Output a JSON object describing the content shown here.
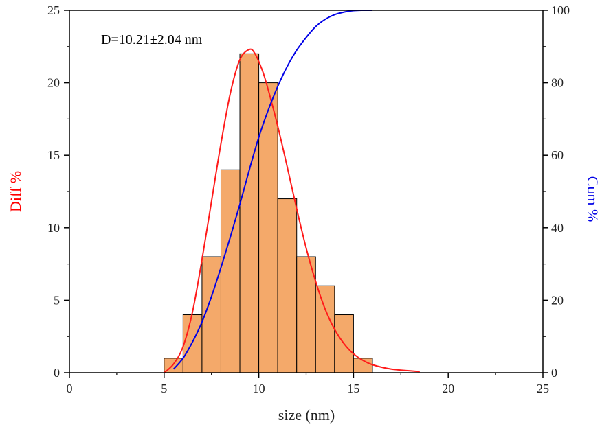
{
  "chart_data": {
    "type": "bar",
    "subtype": "histogram-with-fit-and-cumulative",
    "annotation": "D=10.21±2.04 nm",
    "xlabel": "size (nm)",
    "ylabel_left": "Diff %",
    "ylabel_right": "Cum %",
    "xlim": [
      0,
      25
    ],
    "ylim_left": [
      0,
      25
    ],
    "ylim_right": [
      0,
      100
    ],
    "x_ticks": [
      0,
      5,
      10,
      15,
      20,
      25
    ],
    "y_left_ticks": [
      0,
      5,
      10,
      15,
      20,
      25
    ],
    "y_right_ticks": [
      0,
      20,
      40,
      60,
      80,
      100
    ],
    "bins": [
      {
        "x0": 5,
        "x1": 6,
        "value": 1
      },
      {
        "x0": 6,
        "x1": 7,
        "value": 4
      },
      {
        "x0": 7,
        "x1": 8,
        "value": 8
      },
      {
        "x0": 8,
        "x1": 9,
        "value": 14
      },
      {
        "x0": 9,
        "x1": 10,
        "value": 22
      },
      {
        "x0": 10,
        "x1": 11,
        "value": 20
      },
      {
        "x0": 11,
        "x1": 12,
        "value": 12
      },
      {
        "x0": 12,
        "x1": 13,
        "value": 8
      },
      {
        "x0": 13,
        "x1": 14,
        "value": 6
      },
      {
        "x0": 14,
        "x1": 15,
        "value": 4
      },
      {
        "x0": 15,
        "x1": 16,
        "value": 1
      }
    ],
    "fit_curve": {
      "name": "Diff fit",
      "axis": "left",
      "x": [
        5,
        5.5,
        6,
        6.5,
        7,
        7.5,
        8,
        8.5,
        9,
        9.5,
        9.8,
        10.2,
        10.5,
        11,
        11.5,
        12,
        12.5,
        13,
        13.5,
        14,
        14.5,
        15,
        15.5,
        16,
        17,
        18.5
      ],
      "y": [
        0,
        0.6,
        1.8,
        4.2,
        7.8,
        11.8,
        15.8,
        19.3,
        21.6,
        22.3,
        22.0,
        20.8,
        19.5,
        17.0,
        14.2,
        11.3,
        8.6,
        6.3,
        4.4,
        3.0,
        2.0,
        1.3,
        0.85,
        0.55,
        0.25,
        0.08
      ]
    },
    "cumulative_curve": {
      "name": "Cum",
      "axis": "right",
      "x": [
        5.5,
        6,
        6.5,
        7,
        7.5,
        8,
        8.5,
        9,
        9.5,
        10,
        10.5,
        11,
        11.5,
        12,
        12.5,
        13,
        13.5,
        14,
        14.5,
        15,
        15.5,
        16
      ],
      "y": [
        1,
        4,
        8.5,
        14,
        21,
        29,
        37.5,
        46.5,
        56,
        65,
        72.5,
        79,
        84.5,
        89,
        92.5,
        95.5,
        97.5,
        98.8,
        99.5,
        99.9,
        100,
        100
      ]
    },
    "colors": {
      "bar_fill": "#F4A96A",
      "bar_stroke": "#000000",
      "fit": "#FF1A1A",
      "cumulative": "#0000E6",
      "left_label": "#FF0000",
      "right_label": "#0000E6",
      "axis": "#000000"
    }
  }
}
